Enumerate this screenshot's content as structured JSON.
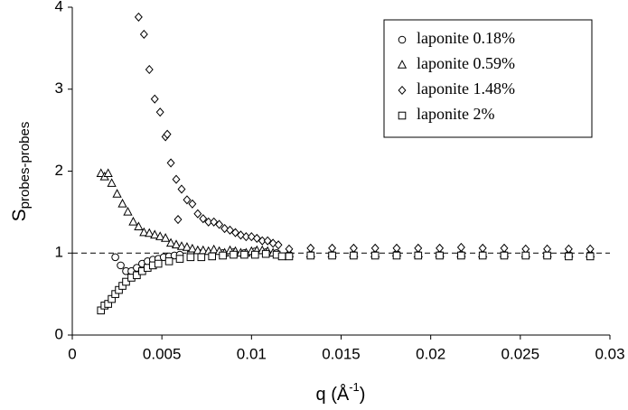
{
  "chart_data": {
    "type": "scatter",
    "ylabel": "S",
    "ylabel_sub": "probes-probes",
    "xlabel": "q (Å",
    "xlabel_sup": "-1",
    "xlabel_end": ")",
    "xlim": [
      0,
      0.03
    ],
    "xticks": [
      0,
      0.005,
      0.01,
      0.015,
      0.02,
      0.025,
      0.03
    ],
    "ylim": [
      0,
      4
    ],
    "yticks": [
      0,
      1,
      2,
      3,
      4
    ],
    "reference_line": 1,
    "legend": "upper right",
    "series": [
      {
        "name": "laponite 0.18%",
        "marker": "circle",
        "color": "#000000",
        "x": [
          0.0024,
          0.0027,
          0.003,
          0.0033,
          0.0036,
          0.0039,
          0.0042,
          0.0045,
          0.0048,
          0.0051,
          0.0054,
          0.0057,
          0.006,
          0.0066,
          0.0072,
          0.0078,
          0.0084,
          0.009,
          0.0096,
          0.0102,
          0.0108,
          0.0114,
          0.0121,
          0.0133,
          0.0145,
          0.0157,
          0.0169,
          0.0181,
          0.0193,
          0.0205,
          0.0217,
          0.0229,
          0.0241,
          0.0253,
          0.0265,
          0.0277,
          0.0289
        ],
        "values": [
          0.95,
          0.85,
          0.78,
          0.78,
          0.82,
          0.87,
          0.9,
          0.92,
          0.93,
          0.95,
          0.96,
          0.97,
          0.98,
          1.0,
          1.0,
          0.99,
          1.0,
          1.01,
          1.0,
          1.02,
          1.01,
          1.0,
          0.98,
          0.98,
          0.98,
          0.98,
          0.98,
          0.99,
          0.98,
          0.98,
          0.98,
          0.98,
          0.98,
          0.98,
          0.98,
          0.98,
          0.98
        ]
      },
      {
        "name": "laponite 0.59%",
        "marker": "triangle",
        "color": "#000000",
        "x": [
          0.0016,
          0.0018,
          0.002,
          0.0022,
          0.0025,
          0.0028,
          0.0031,
          0.0034,
          0.0037,
          0.004,
          0.0043,
          0.0046,
          0.0049,
          0.0052,
          0.0055,
          0.0058,
          0.0061,
          0.0064,
          0.0067,
          0.007,
          0.0073,
          0.0076,
          0.0079,
          0.0082,
          0.0085,
          0.0088,
          0.0091,
          0.0094,
          0.0097,
          0.01,
          0.0103,
          0.0106,
          0.0109,
          0.0112,
          0.0115,
          0.0121,
          0.0133,
          0.0145,
          0.0157,
          0.0169,
          0.0181,
          0.0193,
          0.0205,
          0.0217,
          0.0229,
          0.0241,
          0.0253,
          0.0265,
          0.0277,
          0.0289
        ],
        "values": [
          1.97,
          1.93,
          1.97,
          1.85,
          1.72,
          1.6,
          1.5,
          1.38,
          1.32,
          1.25,
          1.24,
          1.22,
          1.2,
          1.18,
          1.12,
          1.1,
          1.08,
          1.07,
          1.05,
          1.03,
          1.03,
          1.02,
          1.04,
          1.02,
          1.0,
          1.03,
          1.02,
          1.0,
          1.0,
          1.02,
          1.03,
          1.03,
          1.02,
          1.0,
          0.98,
          0.99,
          0.99,
          0.99,
          0.99,
          0.99,
          1.0,
          0.99,
          0.99,
          0.99,
          0.99,
          0.99,
          0.99,
          0.99,
          0.99,
          0.99
        ]
      },
      {
        "name": "laponite 1.48%",
        "marker": "diamond",
        "color": "#000000",
        "x": [
          0.0037,
          0.004,
          0.0043,
          0.0046,
          0.0049,
          0.0052,
          0.0053,
          0.0055,
          0.0058,
          0.0059,
          0.0061,
          0.0064,
          0.0067,
          0.007,
          0.0073,
          0.0076,
          0.0079,
          0.0082,
          0.0085,
          0.0088,
          0.0091,
          0.0094,
          0.0097,
          0.01,
          0.0103,
          0.0106,
          0.0109,
          0.0112,
          0.0115,
          0.0121,
          0.0133,
          0.0145,
          0.0157,
          0.0169,
          0.0181,
          0.0193,
          0.0205,
          0.0217,
          0.0229,
          0.0241,
          0.0253,
          0.0265,
          0.0277,
          0.0289
        ],
        "values": [
          3.88,
          3.67,
          3.24,
          2.88,
          2.72,
          2.42,
          2.45,
          2.1,
          1.9,
          1.41,
          1.78,
          1.65,
          1.6,
          1.48,
          1.42,
          1.38,
          1.38,
          1.35,
          1.3,
          1.28,
          1.25,
          1.22,
          1.2,
          1.2,
          1.18,
          1.15,
          1.15,
          1.12,
          1.1,
          1.05,
          1.06,
          1.06,
          1.06,
          1.06,
          1.06,
          1.06,
          1.06,
          1.07,
          1.06,
          1.06,
          1.05,
          1.05,
          1.05,
          1.05
        ]
      },
      {
        "name": "laponite 2%",
        "marker": "square",
        "color": "#000000",
        "x": [
          0.0016,
          0.0018,
          0.002,
          0.0022,
          0.0024,
          0.0026,
          0.0028,
          0.003,
          0.0033,
          0.0036,
          0.0039,
          0.0042,
          0.0045,
          0.0048,
          0.0054,
          0.006,
          0.0066,
          0.0072,
          0.0078,
          0.0084,
          0.009,
          0.0096,
          0.0102,
          0.0108,
          0.0114,
          0.0117,
          0.0121,
          0.0133,
          0.0145,
          0.0157,
          0.0169,
          0.0181,
          0.0193,
          0.0205,
          0.0217,
          0.0229,
          0.0241,
          0.0253,
          0.0265,
          0.0277,
          0.0289
        ],
        "values": [
          0.3,
          0.36,
          0.38,
          0.44,
          0.5,
          0.55,
          0.6,
          0.65,
          0.7,
          0.73,
          0.78,
          0.82,
          0.85,
          0.87,
          0.9,
          0.93,
          0.95,
          0.95,
          0.96,
          0.97,
          0.98,
          0.98,
          0.98,
          0.99,
          0.98,
          0.96,
          0.96,
          0.97,
          0.97,
          0.97,
          0.97,
          0.97,
          0.97,
          0.97,
          0.97,
          0.97,
          0.97,
          0.97,
          0.97,
          0.96,
          0.96
        ]
      }
    ]
  }
}
